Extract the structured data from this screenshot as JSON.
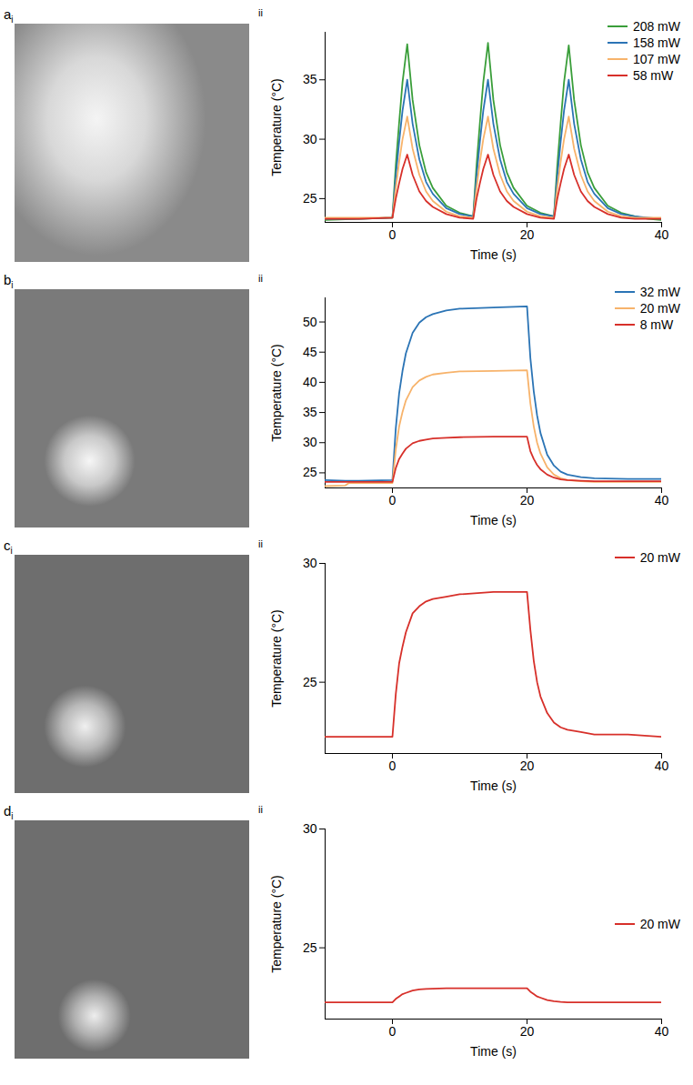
{
  "chart_data": [
    {
      "type": "line",
      "panel_label": "a",
      "image_sublabel": "i",
      "plot_sublabel": "ii",
      "xlabel": "Time (s)",
      "ylabel": "Temperature (°C)",
      "x": [
        -10,
        -5,
        0,
        0.5,
        1,
        1.5,
        2.2,
        3,
        4,
        5,
        6,
        8,
        10,
        12,
        12.5,
        13,
        13.5,
        14.2,
        15,
        16,
        17,
        18,
        20,
        22,
        24,
        24.5,
        25,
        25.5,
        26.2,
        27,
        28,
        29,
        30,
        32,
        34,
        36,
        38,
        40
      ],
      "xlim": [
        -10,
        40
      ],
      "xticks": [
        0,
        20,
        40
      ],
      "ylim": [
        23,
        39
      ],
      "yticks": [
        25,
        30,
        35
      ],
      "legend": "upper right",
      "series": [
        {
          "name": "208 mW",
          "color": "#3a9e3a",
          "values": [
            23.2,
            23.3,
            23.4,
            27.8,
            31.4,
            34.8,
            38.0,
            33.3,
            29.5,
            27.2,
            25.9,
            24.4,
            23.8,
            23.5,
            27.8,
            31.4,
            34.8,
            38.1,
            33.3,
            29.5,
            27.2,
            25.9,
            24.4,
            23.8,
            23.5,
            27.8,
            31.4,
            34.8,
            37.9,
            33.3,
            29.5,
            27.2,
            25.9,
            24.4,
            23.8,
            23.5,
            23.3,
            23.2
          ]
        },
        {
          "name": "158 mW",
          "color": "#2b74b5",
          "values": [
            23.3,
            23.3,
            23.4,
            26.9,
            29.8,
            32.4,
            35.0,
            31.3,
            28.3,
            26.4,
            25.4,
            24.2,
            23.7,
            23.5,
            26.9,
            29.8,
            32.4,
            35.0,
            31.3,
            28.3,
            26.4,
            25.4,
            24.2,
            23.7,
            23.5,
            26.9,
            29.8,
            32.4,
            35.0,
            31.3,
            28.3,
            26.4,
            25.4,
            24.2,
            23.7,
            23.5,
            23.4,
            23.3
          ]
        },
        {
          "name": "107 mW",
          "color": "#f7b36b",
          "values": [
            23.4,
            23.4,
            23.4,
            25.9,
            28.1,
            30.0,
            31.9,
            29.2,
            27.0,
            25.6,
            24.8,
            23.9,
            23.5,
            23.4,
            25.9,
            28.1,
            30.0,
            31.9,
            29.2,
            27.0,
            25.6,
            24.8,
            23.9,
            23.5,
            23.4,
            25.9,
            28.1,
            30.0,
            31.9,
            29.2,
            27.0,
            25.6,
            24.8,
            23.9,
            23.5,
            23.4,
            23.4,
            23.4
          ]
        },
        {
          "name": "58 mW",
          "color": "#d7302a",
          "values": [
            23.3,
            23.3,
            23.4,
            25.0,
            26.3,
            27.5,
            28.7,
            27.0,
            25.6,
            24.8,
            24.3,
            23.7,
            23.4,
            23.3,
            25.0,
            26.3,
            27.5,
            28.7,
            27.0,
            25.6,
            24.8,
            24.3,
            23.7,
            23.4,
            23.3,
            25.0,
            26.3,
            27.5,
            28.7,
            27.0,
            25.6,
            24.8,
            24.3,
            23.7,
            23.4,
            23.3,
            23.3,
            23.3
          ]
        }
      ]
    },
    {
      "type": "line",
      "panel_label": "b",
      "image_sublabel": "i",
      "plot_sublabel": "ii",
      "xlabel": "Time (s)",
      "ylabel": "Temperature (°C)",
      "x": [
        -10,
        -7,
        -6.5,
        -5,
        0,
        0.5,
        1,
        1.5,
        2,
        3,
        4,
        5,
        6,
        8,
        10,
        15,
        20,
        20.5,
        21,
        21.5,
        22,
        23,
        24,
        25,
        26,
        28,
        30,
        35,
        40
      ],
      "xlim": [
        -10,
        40
      ],
      "xticks": [
        0,
        20,
        40
      ],
      "ylim": [
        22.5,
        54
      ],
      "yticks": [
        25,
        30,
        35,
        40,
        45,
        50
      ],
      "legend": "upper right",
      "series": [
        {
          "name": "32 mW",
          "color": "#2b74b5",
          "values": [
            23.8,
            23.7,
            23.7,
            23.7,
            23.8,
            32.4,
            38.2,
            41.9,
            44.8,
            48.2,
            49.9,
            50.8,
            51.3,
            51.9,
            52.2,
            52.4,
            52.6,
            44.0,
            38.5,
            34.5,
            31.6,
            28.0,
            26.2,
            25.2,
            24.7,
            24.3,
            24.1,
            24.0,
            24.0
          ]
        },
        {
          "name": "20 mW",
          "color": "#f7b36b",
          "values": [
            22.8,
            22.9,
            23.3,
            23.3,
            23.3,
            28.9,
            32.7,
            35.1,
            37.0,
            39.2,
            40.3,
            40.9,
            41.3,
            41.6,
            41.8,
            41.9,
            42.0,
            36.5,
            32.7,
            30.0,
            28.2,
            25.9,
            24.7,
            24.1,
            23.8,
            23.6,
            23.5,
            23.5,
            23.5
          ]
        },
        {
          "name": "8 mW",
          "color": "#d7302a",
          "values": [
            23.5,
            23.5,
            23.5,
            23.5,
            23.5,
            25.8,
            27.3,
            28.2,
            29.0,
            29.9,
            30.3,
            30.5,
            30.7,
            30.8,
            30.9,
            31.0,
            31.0,
            28.6,
            27.3,
            26.3,
            25.6,
            24.7,
            24.2,
            23.9,
            23.8,
            23.7,
            23.6,
            23.6,
            23.6
          ]
        }
      ]
    },
    {
      "type": "line",
      "panel_label": "c",
      "image_sublabel": "i",
      "plot_sublabel": "ii",
      "xlabel": "Time (s)",
      "ylabel": "Temperature (°C)",
      "x": [
        -10,
        -5,
        0,
        0.5,
        1,
        1.5,
        2,
        3,
        4,
        5,
        6,
        8,
        10,
        15,
        20,
        20.5,
        21,
        21.5,
        22,
        23,
        24,
        25,
        26,
        28,
        30,
        35,
        40
      ],
      "xlim": [
        -10,
        40
      ],
      "xticks": [
        0,
        20,
        40
      ],
      "ylim": [
        22,
        30
      ],
      "yticks": [
        25,
        30
      ],
      "legend": "upper right",
      "series": [
        {
          "name": "20 mW",
          "color": "#d7302a",
          "values": [
            22.7,
            22.7,
            22.7,
            24.5,
            25.8,
            26.5,
            27.1,
            27.9,
            28.2,
            28.4,
            28.5,
            28.6,
            28.7,
            28.8,
            28.8,
            27.2,
            25.9,
            25.0,
            24.4,
            23.7,
            23.3,
            23.1,
            23.0,
            22.9,
            22.8,
            22.8,
            22.7
          ]
        }
      ]
    },
    {
      "type": "line",
      "panel_label": "d",
      "image_sublabel": "i",
      "plot_sublabel": "ii",
      "xlabel": "Time (s)",
      "ylabel": "Temperature (°C)",
      "x": [
        -10,
        -5,
        0,
        0.5,
        1,
        1.5,
        2,
        3,
        4,
        5,
        6,
        8,
        10,
        15,
        20,
        20.5,
        21,
        21.5,
        22,
        23,
        24,
        25,
        26,
        28,
        30,
        35,
        40
      ],
      "xlim": [
        -10,
        40
      ],
      "xticks": [
        0,
        20,
        40
      ],
      "ylim": [
        22,
        30
      ],
      "yticks": [
        25,
        30
      ],
      "legend": "right",
      "series": [
        {
          "name": "20 mW",
          "color": "#d7302a",
          "values": [
            22.7,
            22.7,
            22.7,
            22.85,
            22.95,
            23.05,
            23.1,
            23.2,
            23.25,
            23.27,
            23.28,
            23.3,
            23.3,
            23.3,
            23.3,
            23.15,
            23.05,
            22.95,
            22.9,
            22.8,
            22.75,
            22.72,
            22.7,
            22.7,
            22.7,
            22.7,
            22.7
          ]
        }
      ]
    }
  ]
}
